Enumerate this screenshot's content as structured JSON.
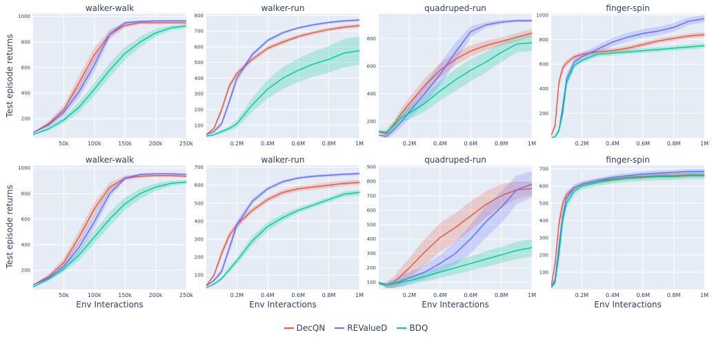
{
  "figure": {
    "colors": {
      "plot_bg": "#E5ECF6",
      "grid": "#FFFFFF",
      "text": "#2a3f5f",
      "DecQN": "#EF553B",
      "REValueD": "#636EFA",
      "BDQ": "#00CC96"
    },
    "ylabel_row1": "Test episode returns",
    "ylabel_row2": "Test episode returns",
    "xlabel": "Env Interactions",
    "legend": [
      "DecQN",
      "REValueD",
      "BDQ"
    ]
  },
  "chart_data": [
    {
      "type": "line",
      "title": "walker-walk",
      "xlim": [
        0,
        250000
      ],
      "ylim": [
        50,
        1020
      ],
      "xticks": [
        50000,
        100000,
        150000,
        200000,
        250000
      ],
      "xticklabels": [
        "50k",
        "100k",
        "150k",
        "200k",
        "250k"
      ],
      "yticks": [
        200,
        400,
        600,
        800,
        1000
      ],
      "x": [
        0,
        25000,
        50000,
        75000,
        100000,
        125000,
        150000,
        175000,
        200000,
        225000,
        250000
      ],
      "series": [
        {
          "name": "DecQN",
          "values": [
            90,
            160,
            270,
            480,
            700,
            860,
            930,
            950,
            950,
            950,
            950
          ],
          "band": [
            0,
            20,
            35,
            55,
            55,
            35,
            20,
            12,
            10,
            10,
            10
          ]
        },
        {
          "name": "REValueD",
          "values": [
            90,
            150,
            250,
            410,
            620,
            860,
            950,
            960,
            965,
            965,
            965
          ],
          "band": [
            0,
            15,
            30,
            45,
            55,
            30,
            12,
            8,
            6,
            6,
            6
          ]
        },
        {
          "name": "BDQ",
          "values": [
            75,
            120,
            190,
            290,
            430,
            580,
            710,
            800,
            870,
            910,
            925
          ],
          "band": [
            0,
            15,
            25,
            40,
            50,
            55,
            50,
            40,
            30,
            20,
            15
          ]
        }
      ]
    },
    {
      "type": "line",
      "title": "walker-run",
      "xlim": [
        0,
        1000000
      ],
      "ylim": [
        20,
        810
      ],
      "xticks": [
        200000,
        400000,
        600000,
        800000,
        1000000
      ],
      "xticklabels": [
        "0.2M",
        "0.4M",
        "0.6M",
        "0.8M",
        "1M"
      ],
      "yticks": [
        100,
        200,
        300,
        400,
        500,
        600,
        700,
        800
      ],
      "x": [
        0,
        50000,
        100000,
        150000,
        200000,
        300000,
        400000,
        500000,
        600000,
        700000,
        800000,
        900000,
        1000000
      ],
      "series": [
        {
          "name": "DecQN",
          "values": [
            40,
            80,
            200,
            350,
            430,
            520,
            590,
            630,
            665,
            690,
            710,
            725,
            735
          ],
          "band": [
            0,
            10,
            20,
            20,
            20,
            15,
            15,
            15,
            12,
            12,
            12,
            12,
            12
          ]
        },
        {
          "name": "REValueD",
          "values": [
            40,
            60,
            110,
            250,
            400,
            550,
            640,
            690,
            720,
            740,
            755,
            765,
            770
          ],
          "band": [
            0,
            8,
            15,
            25,
            25,
            15,
            12,
            10,
            8,
            8,
            8,
            8,
            8
          ]
        },
        {
          "name": "BDQ",
          "values": [
            30,
            40,
            60,
            80,
            110,
            230,
            330,
            400,
            450,
            490,
            520,
            560,
            575
          ],
          "band": [
            0,
            5,
            10,
            15,
            25,
            45,
            60,
            70,
            75,
            80,
            85,
            90,
            90
          ]
        }
      ]
    },
    {
      "type": "line",
      "title": "quadruped-run",
      "xlim": [
        0,
        1000000
      ],
      "ylim": [
        80,
        980
      ],
      "xticks": [
        200000,
        400000,
        600000,
        800000,
        1000000
      ],
      "xticklabels": [
        "0.2M",
        "0.4M",
        "0.6M",
        "0.8M",
        "1M"
      ],
      "yticks": [
        200,
        400,
        600,
        800
      ],
      "x": [
        0,
        50000,
        100000,
        150000,
        200000,
        300000,
        400000,
        500000,
        600000,
        700000,
        800000,
        900000,
        1000000
      ],
      "series": [
        {
          "name": "DecQN",
          "values": [
            120,
            110,
            180,
            260,
            330,
            460,
            570,
            650,
            710,
            750,
            780,
            810,
            840
          ],
          "band": [
            0,
            20,
            30,
            40,
            45,
            50,
            50,
            45,
            40,
            35,
            30,
            30,
            30
          ]
        },
        {
          "name": "REValueD",
          "values": [
            100,
            90,
            140,
            200,
            270,
            400,
            540,
            700,
            850,
            900,
            920,
            930,
            930
          ],
          "band": [
            0,
            20,
            30,
            40,
            50,
            70,
            80,
            70,
            40,
            20,
            15,
            10,
            10
          ]
        },
        {
          "name": "BDQ",
          "values": [
            130,
            120,
            170,
            230,
            260,
            330,
            420,
            500,
            570,
            630,
            700,
            760,
            770
          ],
          "band": [
            0,
            20,
            30,
            40,
            45,
            60,
            70,
            80,
            80,
            75,
            70,
            60,
            60
          ]
        }
      ]
    },
    {
      "type": "line",
      "title": "finger-spin",
      "xlim": [
        0,
        1000000
      ],
      "ylim": [
        0,
        1010
      ],
      "xticks": [
        200000,
        400000,
        600000,
        800000,
        1000000
      ],
      "xticklabels": [
        "0.2M",
        "0.4M",
        "0.6M",
        "0.8M",
        "1M"
      ],
      "yticks": [
        200,
        400,
        600,
        800,
        1000
      ],
      "x": [
        0,
        25000,
        50000,
        75000,
        100000,
        150000,
        200000,
        300000,
        400000,
        500000,
        600000,
        700000,
        800000,
        900000,
        1000000
      ],
      "series": [
        {
          "name": "DecQN",
          "values": [
            20,
            100,
            450,
            570,
            610,
            660,
            680,
            700,
            710,
            730,
            760,
            790,
            810,
            830,
            840
          ],
          "band": [
            0,
            20,
            40,
            30,
            25,
            20,
            20,
            20,
            20,
            20,
            20,
            20,
            20,
            20,
            20
          ]
        },
        {
          "name": "REValueD",
          "values": [
            0,
            10,
            60,
            250,
            480,
            620,
            660,
            720,
            780,
            820,
            850,
            870,
            900,
            950,
            970
          ],
          "band": [
            0,
            5,
            20,
            40,
            40,
            30,
            30,
            30,
            35,
            35,
            35,
            35,
            35,
            30,
            30
          ]
        },
        {
          "name": "BDQ",
          "values": [
            0,
            10,
            60,
            200,
            450,
            590,
            630,
            680,
            690,
            700,
            710,
            720,
            730,
            740,
            750
          ],
          "band": [
            0,
            5,
            20,
            40,
            40,
            25,
            20,
            20,
            20,
            20,
            20,
            20,
            20,
            20,
            20
          ]
        }
      ]
    },
    {
      "type": "line",
      "title": "walker-walk",
      "xlim": [
        0,
        250000
      ],
      "ylim": [
        50,
        1020
      ],
      "xticks": [
        50000,
        100000,
        150000,
        200000,
        250000
      ],
      "xticklabels": [
        "50k",
        "100k",
        "150k",
        "200k",
        "250k"
      ],
      "yticks": [
        200,
        400,
        600,
        800,
        1000
      ],
      "x": [
        0,
        25000,
        50000,
        75000,
        100000,
        125000,
        150000,
        175000,
        200000,
        225000,
        250000
      ],
      "series": [
        {
          "name": "DecQN",
          "values": [
            85,
            150,
            260,
            460,
            680,
            850,
            920,
            935,
            940,
            940,
            935
          ],
          "band": [
            0,
            20,
            35,
            50,
            50,
            35,
            20,
            12,
            10,
            10,
            10
          ]
        },
        {
          "name": "REValueD",
          "values": [
            85,
            140,
            230,
            380,
            580,
            800,
            920,
            950,
            955,
            955,
            950
          ],
          "band": [
            0,
            15,
            30,
            45,
            55,
            35,
            15,
            8,
            6,
            6,
            6
          ]
        },
        {
          "name": "BDQ",
          "values": [
            70,
            130,
            210,
            320,
            460,
            600,
            720,
            800,
            850,
            880,
            890
          ],
          "band": [
            0,
            15,
            25,
            40,
            50,
            55,
            50,
            40,
            30,
            20,
            15
          ]
        }
      ]
    },
    {
      "type": "line",
      "title": "walker-run",
      "xlim": [
        0,
        1000000
      ],
      "ylim": [
        20,
        710
      ],
      "xticks": [
        200000,
        400000,
        600000,
        800000,
        1000000
      ],
      "xticklabels": [
        "0.2M",
        "0.4M",
        "0.6M",
        "0.8M",
        "1M"
      ],
      "yticks": [
        100,
        200,
        300,
        400,
        500,
        600,
        700
      ],
      "x": [
        0,
        50000,
        100000,
        150000,
        200000,
        300000,
        400000,
        500000,
        600000,
        700000,
        800000,
        900000,
        1000000
      ],
      "series": [
        {
          "name": "DecQN",
          "values": [
            40,
            100,
            220,
            320,
            380,
            460,
            520,
            560,
            580,
            590,
            600,
            610,
            615
          ],
          "band": [
            0,
            10,
            20,
            20,
            20,
            15,
            15,
            15,
            15,
            15,
            15,
            15,
            15
          ]
        },
        {
          "name": "REValueD",
          "values": [
            40,
            70,
            120,
            250,
            380,
            510,
            580,
            620,
            640,
            650,
            655,
            660,
            665
          ],
          "band": [
            0,
            8,
            15,
            25,
            25,
            15,
            12,
            10,
            8,
            8,
            8,
            8,
            8
          ]
        },
        {
          "name": "BDQ",
          "values": [
            30,
            50,
            80,
            130,
            180,
            290,
            370,
            420,
            460,
            490,
            520,
            550,
            560
          ],
          "band": [
            0,
            5,
            10,
            15,
            20,
            25,
            25,
            20,
            15,
            15,
            15,
            15,
            15
          ]
        }
      ]
    },
    {
      "type": "line",
      "title": "quadruped-run",
      "xlim": [
        0,
        1000000
      ],
      "ylim": [
        50,
        910
      ],
      "xticks": [
        200000,
        400000,
        600000,
        800000,
        1000000
      ],
      "xticklabels": [
        "0.2M",
        "0.4M",
        "0.6M",
        "0.8M",
        "1M"
      ],
      "yticks": [
        100,
        200,
        300,
        400,
        500,
        600,
        700,
        800,
        900
      ],
      "x": [
        0,
        50000,
        100000,
        150000,
        200000,
        300000,
        400000,
        500000,
        600000,
        700000,
        800000,
        900000,
        1000000
      ],
      "series": [
        {
          "name": "DecQN",
          "values": [
            90,
            80,
            100,
            150,
            200,
            310,
            410,
            480,
            560,
            640,
            700,
            740,
            750
          ],
          "band": [
            0,
            20,
            40,
            60,
            70,
            90,
            100,
            100,
            100,
            90,
            80,
            60,
            50
          ]
        },
        {
          "name": "REValueD",
          "values": [
            100,
            80,
            90,
            110,
            130,
            170,
            230,
            300,
            400,
            520,
            620,
            740,
            780
          ],
          "band": [
            0,
            20,
            30,
            40,
            40,
            50,
            60,
            80,
            100,
            110,
            110,
            100,
            90
          ]
        },
        {
          "name": "BDQ",
          "values": [
            90,
            80,
            90,
            100,
            110,
            140,
            170,
            200,
            230,
            260,
            290,
            320,
            340
          ],
          "band": [
            0,
            20,
            25,
            30,
            30,
            35,
            40,
            45,
            50,
            55,
            55,
            60,
            60
          ]
        }
      ]
    },
    {
      "type": "line",
      "title": "finger-spin",
      "xlim": [
        0,
        1000000
      ],
      "ylim": [
        0,
        720
      ],
      "xticks": [
        200000,
        400000,
        600000,
        800000,
        1000000
      ],
      "xticklabels": [
        "0.2M",
        "0.4M",
        "0.6M",
        "0.8M",
        "1M"
      ],
      "yticks": [
        100,
        200,
        300,
        400,
        500,
        600,
        700
      ],
      "x": [
        0,
        25000,
        50000,
        75000,
        100000,
        150000,
        200000,
        300000,
        400000,
        500000,
        600000,
        700000,
        800000,
        900000,
        1000000
      ],
      "series": [
        {
          "name": "DecQN",
          "values": [
            20,
            150,
            380,
            500,
            550,
            590,
            610,
            630,
            640,
            650,
            655,
            660,
            660,
            665,
            665
          ],
          "band": [
            0,
            20,
            40,
            30,
            20,
            15,
            15,
            15,
            15,
            15,
            15,
            15,
            15,
            15,
            15
          ]
        },
        {
          "name": "REValueD",
          "values": [
            10,
            60,
            250,
            430,
            530,
            590,
            610,
            630,
            650,
            660,
            670,
            675,
            680,
            685,
            685
          ],
          "band": [
            0,
            15,
            40,
            40,
            30,
            20,
            15,
            15,
            15,
            15,
            15,
            15,
            15,
            15,
            15
          ]
        },
        {
          "name": "BDQ",
          "values": [
            10,
            40,
            200,
            400,
            500,
            570,
            600,
            620,
            635,
            645,
            650,
            655,
            655,
            660,
            660
          ],
          "band": [
            0,
            15,
            40,
            40,
            30,
            20,
            20,
            20,
            20,
            20,
            20,
            20,
            20,
            20,
            20
          ]
        }
      ]
    }
  ]
}
